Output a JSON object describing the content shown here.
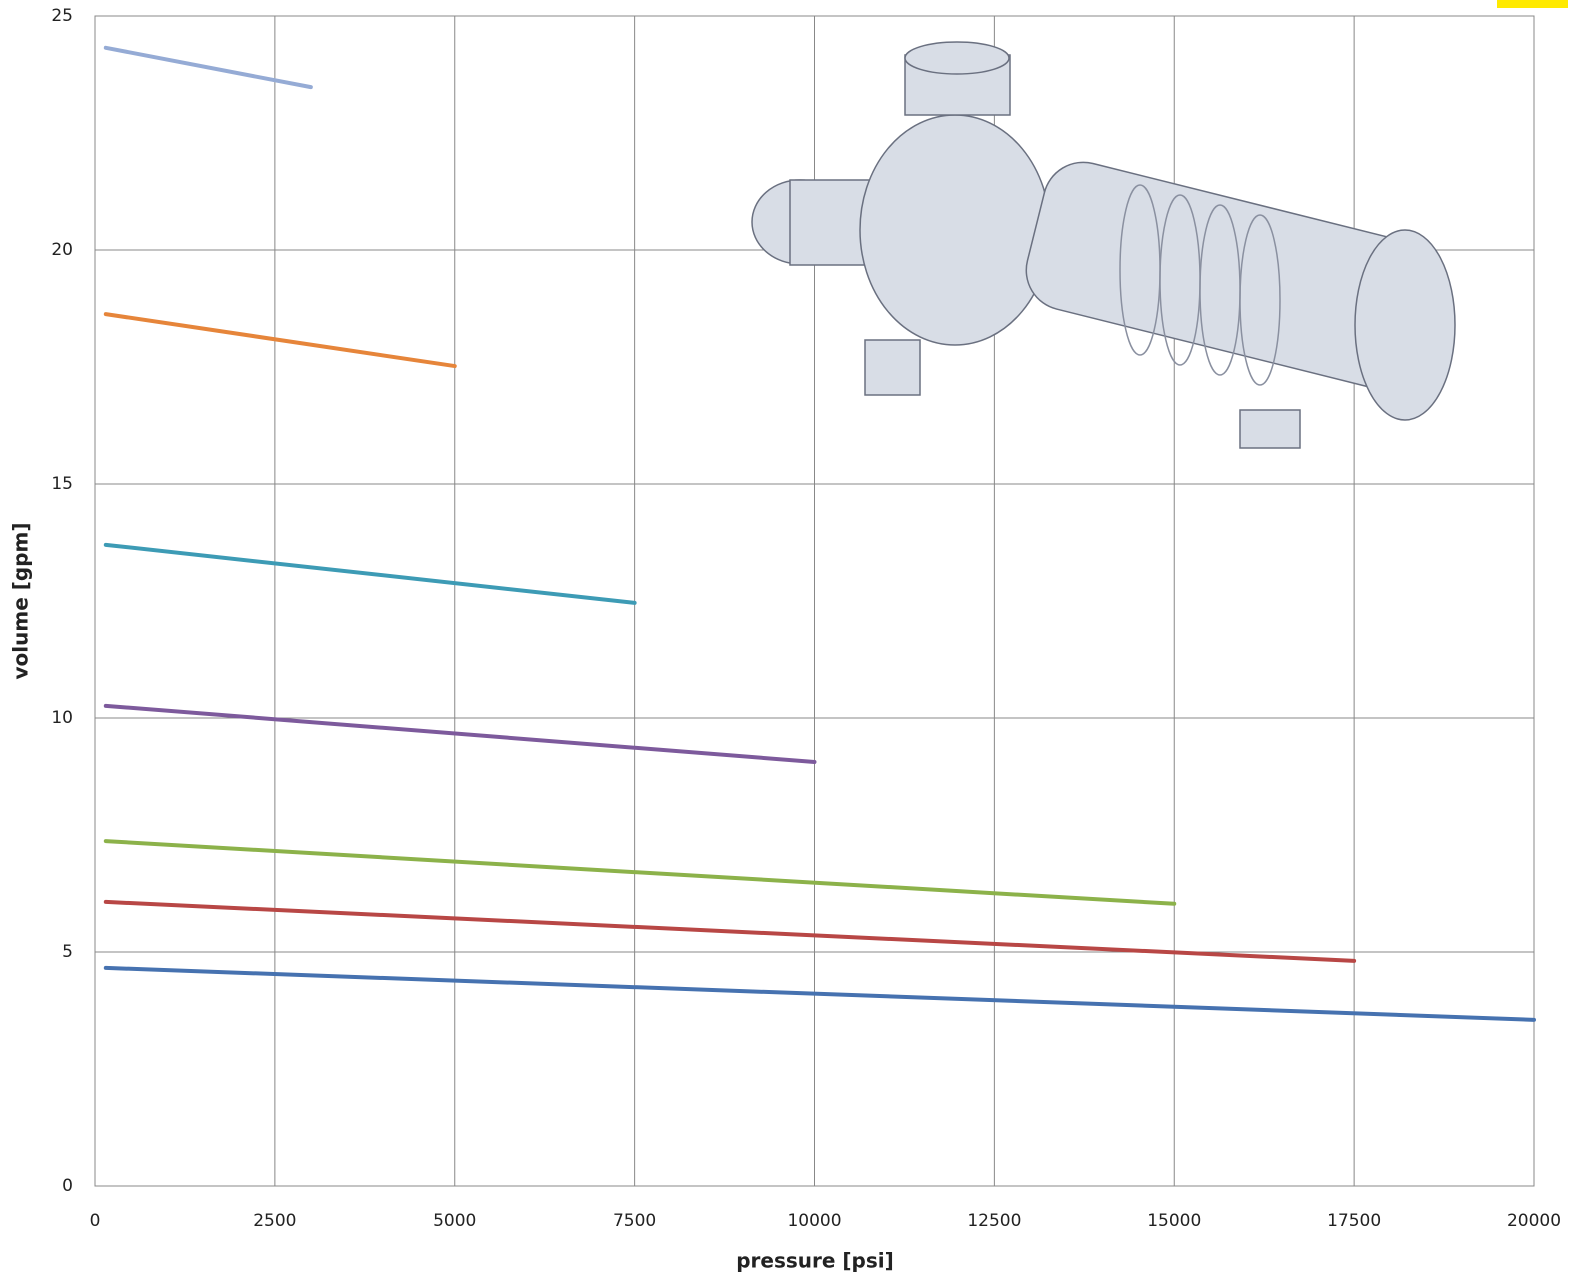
{
  "chart_data": {
    "type": "line",
    "x_label": "pressure [psi]",
    "y_label": "volume [gpm]",
    "xlim": [
      0,
      20000
    ],
    "xticks": [
      0,
      2500,
      5000,
      7500,
      10000,
      12500,
      15000,
      17500,
      20000
    ],
    "ylim": [
      0,
      25
    ],
    "yticks": [
      0,
      5,
      10,
      15,
      20,
      25
    ],
    "grid": true,
    "series": [
      {
        "color": "#95abd5",
        "x": [
          150,
          3000
        ],
        "values": [
          24.32,
          23.48
        ]
      },
      {
        "color": "#e6853a",
        "x": [
          150,
          5000
        ],
        "values": [
          18.63,
          17.52
        ]
      },
      {
        "color": "#3d9bb5",
        "x": [
          150,
          7500
        ],
        "values": [
          13.7,
          12.46
        ]
      },
      {
        "color": "#7d5a9c",
        "x": [
          150,
          10000
        ],
        "values": [
          10.26,
          9.06
        ]
      },
      {
        "color": "#8cb24a",
        "x": [
          150,
          15000
        ],
        "values": [
          7.37,
          6.03
        ]
      },
      {
        "color": "#b84745",
        "x": [
          150,
          17500
        ],
        "values": [
          6.07,
          4.81
        ]
      },
      {
        "color": "#4672b0",
        "x": [
          150,
          20000
        ],
        "values": [
          4.66,
          3.55
        ]
      }
    ]
  }
}
